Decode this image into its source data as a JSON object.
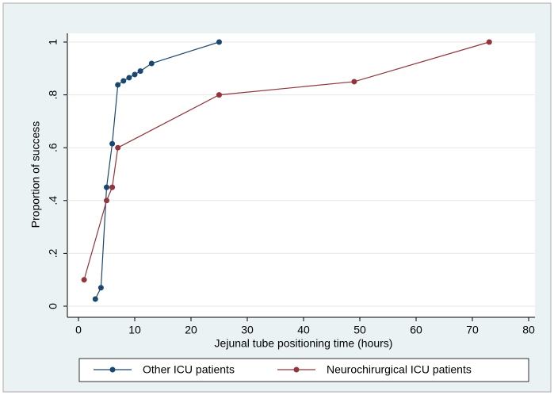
{
  "chart_data": {
    "type": "line",
    "x_label": "Jejunal tube positioning time (hours)",
    "y_label": "Proportion of success",
    "xlim": [
      0,
      80
    ],
    "ylim": [
      0,
      1
    ],
    "xticks": [
      0,
      10,
      20,
      30,
      40,
      50,
      60,
      70,
      80
    ],
    "yticks": [
      0,
      {
        "value": 0.2,
        "label": ".2"
      },
      {
        "value": 0.4,
        "label": ".4"
      },
      {
        "value": 0.6,
        "label": ".6"
      },
      {
        "value": 0.8,
        "label": ".8"
      },
      1
    ],
    "grid": true,
    "legend": "bottom",
    "series": [
      {
        "name": "Other ICU patients",
        "color": "#1a476f",
        "x": [
          3,
          4,
          5,
          6,
          7,
          8,
          9,
          10,
          11,
          13,
          25
        ],
        "values": [
          0.027,
          0.07,
          0.45,
          0.615,
          0.838,
          0.853,
          0.865,
          0.877,
          0.89,
          0.919,
          1
        ]
      },
      {
        "name": "Neurochirurgical ICU patients",
        "color": "#90353b",
        "x": [
          1,
          5,
          6,
          7,
          25,
          49,
          73
        ],
        "values": [
          0.1,
          0.4,
          0.45,
          0.6,
          0.8,
          0.85,
          1
        ]
      }
    ]
  }
}
